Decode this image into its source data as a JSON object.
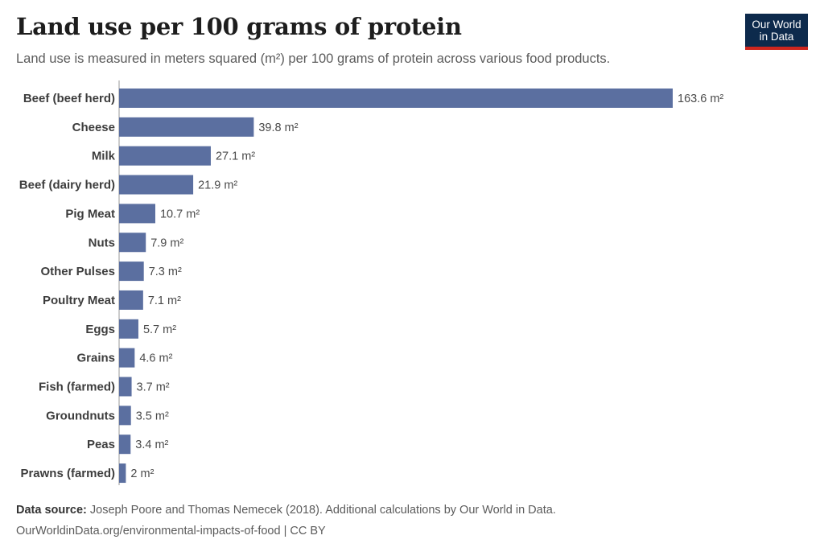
{
  "header": {
    "title": "Land use per 100 grams of protein",
    "subtitle": "Land use is measured in meters squared (m²) per 100 grams of protein across various food products."
  },
  "logo": {
    "line1": "Our World",
    "line2": "in Data"
  },
  "footer": {
    "source_label": "Data source:",
    "source_text": "Joseph Poore and Thomas Nemecek (2018). Additional calculations by Our World in Data.",
    "url_line": "OurWorldinData.org/environmental-impacts-of-food | CC BY"
  },
  "colors": {
    "bar": "#5b6fa0",
    "logo_bg": "#0d2a4c",
    "logo_accent": "#ce261e"
  },
  "chart_data": {
    "type": "bar",
    "orientation": "horizontal",
    "title": "Land use per 100 grams of protein",
    "unit": "m²",
    "categories": [
      "Beef (beef herd)",
      "Cheese",
      "Milk",
      "Beef (dairy herd)",
      "Pig Meat",
      "Nuts",
      "Other Pulses",
      "Poultry Meat",
      "Eggs",
      "Grains",
      "Fish (farmed)",
      "Groundnuts",
      "Peas",
      "Prawns (farmed)"
    ],
    "values": [
      163.6,
      39.8,
      27.1,
      21.9,
      10.7,
      7.9,
      7.3,
      7.1,
      5.7,
      4.6,
      3.7,
      3.5,
      3.4,
      2
    ],
    "value_labels": [
      "163.6 m²",
      "39.8 m²",
      "27.1 m²",
      "21.9 m²",
      "10.7 m²",
      "7.9 m²",
      "7.3 m²",
      "7.1 m²",
      "5.7 m²",
      "4.6 m²",
      "3.7 m²",
      "3.5 m²",
      "3.4 m²",
      "2 m²"
    ],
    "xlim": [
      0,
      163.6
    ]
  }
}
